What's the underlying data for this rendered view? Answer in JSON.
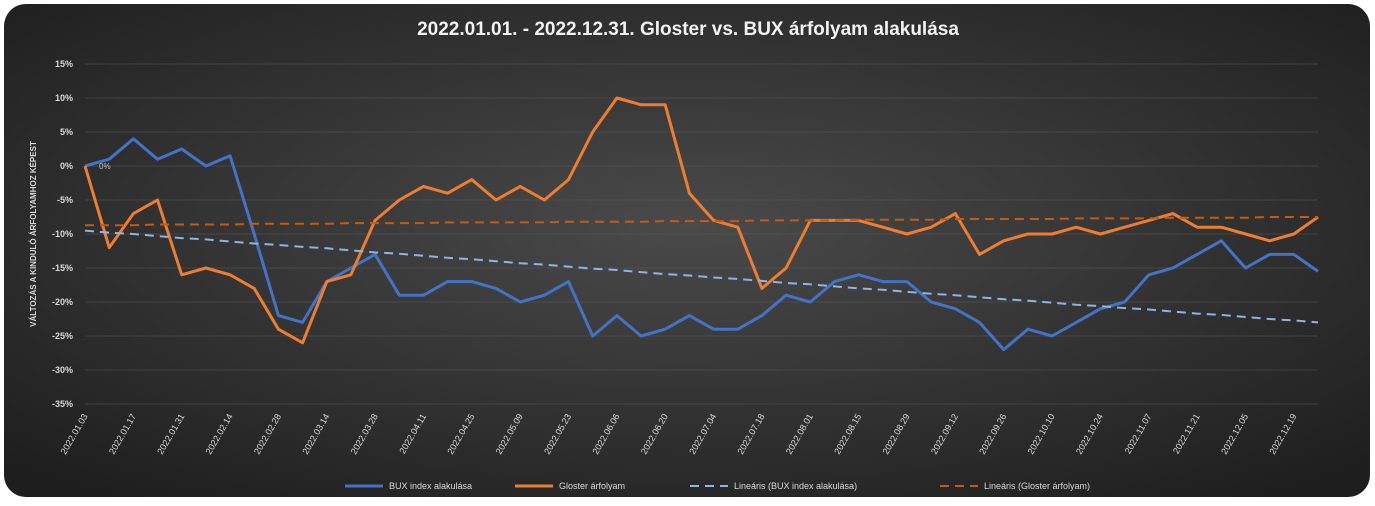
{
  "chart_data": {
    "type": "line",
    "title": "2022.01.01. - 2022.12.31. Gloster vs. BUX árfolyam alakulása",
    "y_label": "VÁLTOZÁS A KINDULÓ ÁRFOLYAMHOZ KÉPEST",
    "annotation": "0%",
    "categories": [
      "2022.01.03",
      null,
      "2022.01.17",
      null,
      "2022.01.31",
      null,
      "2022.02.14",
      null,
      "2022.02.28",
      null,
      "2022.03.14",
      null,
      "2022.03.28",
      null,
      "2022.04.11",
      null,
      "2022.04.25",
      null,
      "2022.05.09",
      null,
      "2022.05.23",
      null,
      "2022.06.06",
      null,
      "2022.06.20",
      null,
      "2022.07.04",
      null,
      "2022.07.18",
      null,
      "2022.08.01",
      null,
      "2022.08.15",
      null,
      "2022.08.29",
      null,
      "2022.09.12",
      null,
      "2022.09.26",
      null,
      "2022.10.10",
      null,
      "2022.10.24",
      null,
      "2022.11.07",
      null,
      "2022.11.21",
      null,
      "2022.12.05",
      null,
      "2022.12.19",
      null
    ],
    "series": [
      {
        "name": "BUX index alakulása",
        "color": "#4472c4",
        "dash": false,
        "values": [
          0,
          1,
          4,
          1,
          2.5,
          0,
          1.5,
          -10,
          -22,
          -23,
          -17,
          -15,
          -13,
          -19,
          -19,
          -17,
          -17,
          -18,
          -20,
          -19,
          -17,
          -25,
          -22,
          -25,
          -24,
          -22,
          -24,
          -24,
          -22,
          -19,
          -20,
          -17,
          -16,
          -17,
          -17,
          -20,
          -21,
          -23,
          -27,
          -24,
          -25,
          -23,
          -21,
          -20,
          -16,
          -15,
          -13,
          -11,
          -15,
          -13,
          -13,
          -15.5
        ]
      },
      {
        "name": "Gloster árfolyam",
        "color": "#ed7d31",
        "dash": false,
        "values": [
          0,
          -12,
          -7,
          -5,
          -16,
          -15,
          -16,
          -18,
          -24,
          -26,
          -17,
          -16,
          -8,
          -5,
          -3,
          -4,
          -2,
          -5,
          -3,
          -5,
          -2,
          5,
          10,
          9,
          9,
          -4,
          -8,
          -9,
          -18,
          -15,
          -8,
          -8,
          -8,
          -9,
          -10,
          -9,
          -7,
          -13,
          -11,
          -10,
          -10,
          -9,
          -10,
          -9,
          -8,
          -7,
          -9,
          -9,
          -10,
          -11,
          -10,
          -7.5
        ]
      },
      {
        "name": "Lineáris (BUX index alakulása)",
        "color": "#8eb4e3",
        "dash": true,
        "values": [
          -9.5,
          -9.8,
          -10,
          -10.3,
          -10.6,
          -10.8,
          -11.1,
          -11.4,
          -11.6,
          -11.9,
          -12.1,
          -12.4,
          -12.7,
          -12.9,
          -13.2,
          -13.5,
          -13.7,
          -14,
          -14.3,
          -14.5,
          -14.8,
          -15.1,
          -15.3,
          -15.6,
          -15.9,
          -16.1,
          -16.4,
          -16.6,
          -16.9,
          -17.2,
          -17.4,
          -17.7,
          -18,
          -18.2,
          -18.5,
          -18.8,
          -19,
          -19.3,
          -19.6,
          -19.8,
          -20.1,
          -20.4,
          -20.6,
          -20.9,
          -21.1,
          -21.4,
          -21.7,
          -21.9,
          -22.2,
          -22.5,
          -22.7,
          -23
        ]
      },
      {
        "name": "Lineáris (Gloster árfolyam)",
        "color": "#c55a11",
        "dash": true,
        "values": [
          -8.7,
          -8.7,
          -8.7,
          -8.6,
          -8.6,
          -8.6,
          -8.6,
          -8.5,
          -8.5,
          -8.5,
          -8.5,
          -8.4,
          -8.4,
          -8.4,
          -8.4,
          -8.3,
          -8.3,
          -8.3,
          -8.3,
          -8.3,
          -8.2,
          -8.2,
          -8.2,
          -8.2,
          -8.1,
          -8.1,
          -8.1,
          -8.1,
          -8,
          -8,
          -8,
          -8,
          -7.9,
          -7.9,
          -7.9,
          -7.9,
          -7.8,
          -7.8,
          -7.8,
          -7.8,
          -7.8,
          -7.7,
          -7.7,
          -7.7,
          -7.7,
          -7.6,
          -7.6,
          -7.6,
          -7.6,
          -7.5,
          -7.5,
          -7.5
        ]
      }
    ],
    "ylim": [
      -35,
      15
    ],
    "yticks": [
      {
        "value": -35,
        "label": "-35%"
      },
      {
        "value": -30,
        "label": "-30%"
      },
      {
        "value": -25,
        "label": "-25%"
      },
      {
        "value": -20,
        "label": "-20%"
      },
      {
        "value": -15,
        "label": "-15%"
      },
      {
        "value": -10,
        "label": "-10%"
      },
      {
        "value": -5,
        "label": "-5%"
      },
      {
        "value": 0,
        "label": "0%"
      },
      {
        "value": 5,
        "label": "5%"
      },
      {
        "value": 10,
        "label": "10%"
      },
      {
        "value": 15,
        "label": "15%"
      }
    ],
    "grid": true,
    "legend": "bottom"
  }
}
